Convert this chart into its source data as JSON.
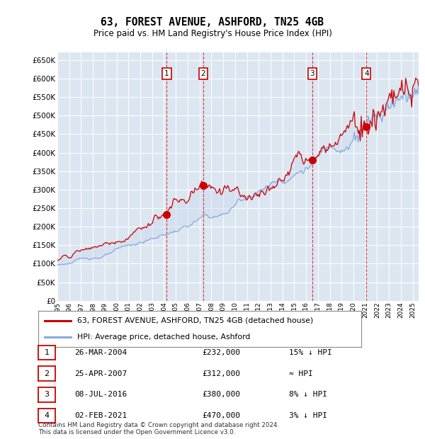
{
  "title": "63, FOREST AVENUE, ASHFORD, TN25 4GB",
  "subtitle": "Price paid vs. HM Land Registry's House Price Index (HPI)",
  "ytick_values": [
    0,
    50000,
    100000,
    150000,
    200000,
    250000,
    300000,
    350000,
    400000,
    450000,
    500000,
    550000,
    600000,
    650000
  ],
  "xmin": 1995.0,
  "xmax": 2025.5,
  "ymin": 0,
  "ymax": 670000,
  "transactions": [
    {
      "num": 1,
      "date_label": "26-MAR-2004",
      "x": 2004.23,
      "price": 232000,
      "hpi_label": "15% ↓ HPI"
    },
    {
      "num": 2,
      "date_label": "25-APR-2007",
      "x": 2007.32,
      "price": 312000,
      "hpi_label": "≈ HPI"
    },
    {
      "num": 3,
      "date_label": "08-JUL-2016",
      "x": 2016.52,
      "price": 380000,
      "hpi_label": "8% ↓ HPI"
    },
    {
      "num": 4,
      "date_label": "02-FEB-2021",
      "x": 2021.09,
      "price": 470000,
      "hpi_label": "3% ↓ HPI"
    }
  ],
  "legend_house_label": "63, FOREST AVENUE, ASHFORD, TN25 4GB (detached house)",
  "legend_hpi_label": "HPI: Average price, detached house, Ashford",
  "footer": "Contains HM Land Registry data © Crown copyright and database right 2024.\nThis data is licensed under the Open Government Licence v3.0.",
  "house_color": "#cc0000",
  "hpi_color": "#88aadd",
  "fill_color": "#c8d8ee",
  "bg_color": "#dce6f1",
  "grid_color": "#ffffff"
}
